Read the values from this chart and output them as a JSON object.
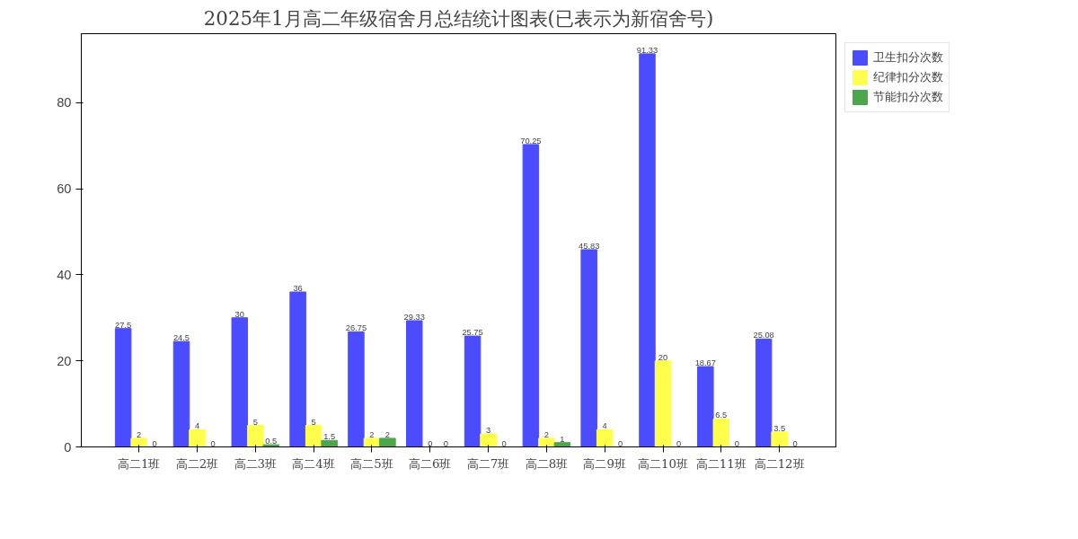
{
  "chart_data": {
    "type": "bar",
    "title": "2025年1月高二年级宿舍月总结统计图表(已表示为新宿舍号)",
    "categories": [
      "高二1班",
      "高二2班",
      "高二3班",
      "高二4班",
      "高二5班",
      "高二6班",
      "高二7班",
      "高二8班",
      "高二9班",
      "高二10班",
      "高二11班",
      "高二12班"
    ],
    "series": [
      {
        "name": "卫生扣分次数",
        "color": "#4c4cff",
        "values": [
          27.5,
          24.5,
          30,
          36,
          26.75,
          29.33,
          25.75,
          70.25,
          45.83,
          91.33,
          18.67,
          25.08
        ]
      },
      {
        "name": "纪律扣分次数",
        "color": "#ffff4c",
        "values": [
          2,
          4,
          5,
          5,
          2,
          0,
          3,
          2,
          4,
          20,
          6.5,
          3.5
        ]
      },
      {
        "name": "节能扣分次数",
        "color": "#4ca64c",
        "values": [
          0,
          0,
          0.5,
          1.5,
          2,
          0,
          0,
          1,
          0,
          0,
          0,
          0
        ]
      }
    ],
    "ylim": [
      0,
      96
    ],
    "yticks": [
      0,
      20,
      40,
      60,
      80
    ],
    "data_labels": true,
    "grid": false,
    "legend": "top right"
  }
}
